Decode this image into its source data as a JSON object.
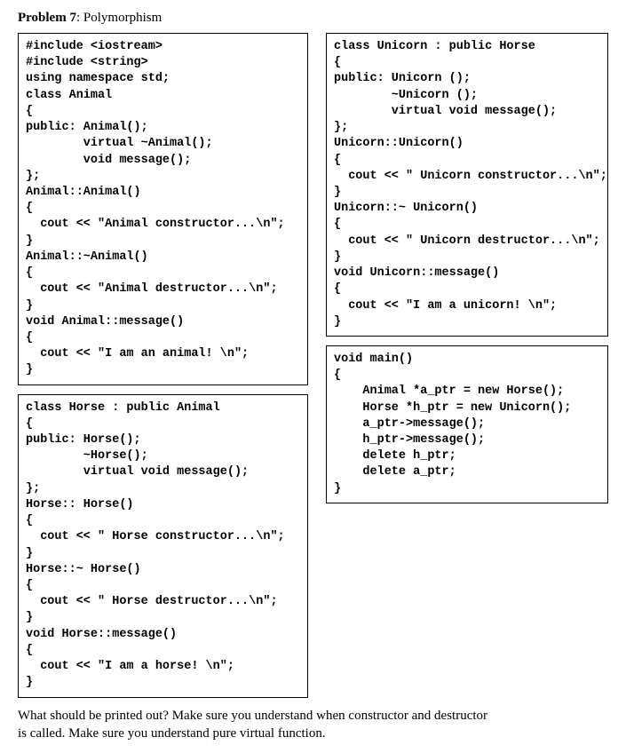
{
  "problem": {
    "label": "Problem 7",
    "title": "Polymorphism"
  },
  "boxes": {
    "animal": "#include <iostream>\n#include <string>\nusing namespace std;\nclass Animal\n{\npublic: Animal();\n        virtual ~Animal();\n        void message();\n};\nAnimal::Animal()\n{\n  cout << \"Animal constructor...\\n\";\n}\nAnimal::~Animal()\n{\n  cout << \"Animal destructor...\\n\";\n}\nvoid Animal::message()\n{\n  cout << \"I am an animal! \\n\";\n}",
    "horse": "class Horse : public Animal\n{\npublic: Horse();\n        ~Horse();\n        virtual void message();\n};\nHorse:: Horse()\n{\n  cout << \" Horse constructor...\\n\";\n}\nHorse::~ Horse()\n{\n  cout << \" Horse destructor...\\n\";\n}\nvoid Horse::message()\n{\n  cout << \"I am a horse! \\n\";\n}",
    "unicorn": "class Unicorn : public Horse\n{\npublic: Unicorn ();\n        ~Unicorn ();\n        virtual void message();\n};\nUnicorn::Unicorn()\n{\n  cout << \" Unicorn constructor...\\n\";\n}\nUnicorn::~ Unicorn()\n{\n  cout << \" Unicorn destructor...\\n\";\n}\nvoid Unicorn::message()\n{\n  cout << \"I am a unicorn! \\n\";\n}",
    "main": "void main()\n{\n    Animal *a_ptr = new Horse();\n    Horse *h_ptr = new Unicorn();\n    a_ptr->message();\n    h_ptr->message();\n    delete h_ptr;\n    delete a_ptr;\n}"
  },
  "question_line1": "What should be printed out? Make sure you understand when constructor and destructor",
  "question_line2": "is called. Make sure you understand pure virtual function."
}
